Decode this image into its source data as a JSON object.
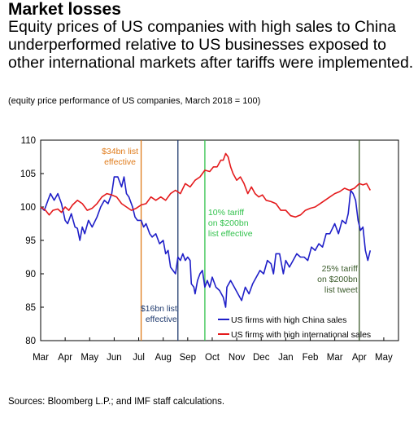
{
  "header": {
    "title": "Market losses",
    "subtitle": "Equity prices of US companies with high sales to China underperformed relative to US businesses exposed to other international markets after tariffs were implemented.",
    "note": "(equity price performance of US companies, March 2018 = 100)"
  },
  "footer": {
    "source": "Sources: Bloomberg L.P.; and IMF staff calculations."
  },
  "colors": {
    "china": "#1f1fc8",
    "international": "#e41a1c",
    "orange": "#e07b1a",
    "navy": "#1f3a6e",
    "green": "#33c24d",
    "darkgreen": "#3a5a2a"
  },
  "chart_data": {
    "type": "line",
    "title": "",
    "xlabel": "",
    "ylabel": "",
    "x_tick_labels": [
      "Mar",
      "Apr",
      "May",
      "Jun",
      "Jul",
      "Aug",
      "Sep",
      "Oct",
      "Nov",
      "Dec",
      "Jan",
      "Feb",
      "Mar",
      "Apr",
      "May"
    ],
    "x_range_months": [
      0,
      14.6
    ],
    "ylim": [
      80,
      110
    ],
    "y_ticks": [
      80,
      85,
      90,
      95,
      100,
      105,
      110
    ],
    "y_tick_labels": [
      "80",
      "85",
      "90",
      "95",
      "100",
      "105",
      "110"
    ],
    "grid": false,
    "legend_position": "bottom-right",
    "series": [
      {
        "name": "US firms with high China sales",
        "color": "#1f1fc8",
        "points": [
          [
            0,
            100
          ],
          [
            0.15,
            99.5
          ],
          [
            0.3,
            101
          ],
          [
            0.4,
            102
          ],
          [
            0.55,
            101
          ],
          [
            0.7,
            102
          ],
          [
            0.85,
            100.5
          ],
          [
            1.0,
            98
          ],
          [
            1.1,
            97.5
          ],
          [
            1.25,
            99
          ],
          [
            1.4,
            97
          ],
          [
            1.5,
            96.8
          ],
          [
            1.6,
            95
          ],
          [
            1.7,
            97
          ],
          [
            1.8,
            96
          ],
          [
            1.95,
            98
          ],
          [
            2.1,
            97
          ],
          [
            2.3,
            98.5
          ],
          [
            2.45,
            100
          ],
          [
            2.6,
            101
          ],
          [
            2.75,
            100.5
          ],
          [
            2.9,
            102
          ],
          [
            3.0,
            104.5
          ],
          [
            3.15,
            104.5
          ],
          [
            3.3,
            103
          ],
          [
            3.4,
            104.5
          ],
          [
            3.5,
            102
          ],
          [
            3.6,
            101.5
          ],
          [
            3.75,
            100
          ],
          [
            3.85,
            98.5
          ],
          [
            3.95,
            98
          ],
          [
            4.1,
            98
          ],
          [
            4.2,
            97
          ],
          [
            4.3,
            97.5
          ],
          [
            4.45,
            96
          ],
          [
            4.55,
            95.5
          ],
          [
            4.7,
            96
          ],
          [
            4.85,
            94.5
          ],
          [
            5.0,
            95
          ],
          [
            5.1,
            93
          ],
          [
            5.2,
            93.5
          ],
          [
            5.3,
            91
          ],
          [
            5.4,
            90.5
          ],
          [
            5.5,
            90
          ],
          [
            5.6,
            92.5
          ],
          [
            5.7,
            92
          ],
          [
            5.8,
            93
          ],
          [
            5.9,
            92
          ],
          [
            6.0,
            92.5
          ],
          [
            6.1,
            92
          ],
          [
            6.15,
            88.5
          ],
          [
            6.25,
            88
          ],
          [
            6.3,
            87
          ],
          [
            6.4,
            89
          ],
          [
            6.5,
            90
          ],
          [
            6.6,
            90.5
          ],
          [
            6.7,
            88
          ],
          [
            6.8,
            89
          ],
          [
            6.9,
            88
          ],
          [
            7.0,
            89.5
          ],
          [
            7.15,
            88
          ],
          [
            7.3,
            87.5
          ],
          [
            7.45,
            86.5
          ],
          [
            7.55,
            85
          ],
          [
            7.6,
            88
          ],
          [
            7.75,
            89
          ],
          [
            7.9,
            88
          ],
          [
            8.05,
            87
          ],
          [
            8.2,
            86
          ],
          [
            8.35,
            88
          ],
          [
            8.5,
            87
          ],
          [
            8.65,
            88.5
          ],
          [
            8.8,
            89.5
          ],
          [
            8.95,
            90.5
          ],
          [
            9.1,
            90
          ],
          [
            9.25,
            92
          ],
          [
            9.4,
            91.5
          ],
          [
            9.5,
            90
          ],
          [
            9.6,
            93
          ],
          [
            9.75,
            93
          ],
          [
            9.9,
            90
          ],
          [
            10.0,
            92
          ],
          [
            10.15,
            91
          ],
          [
            10.3,
            92
          ],
          [
            10.45,
            93
          ],
          [
            10.6,
            92.5
          ],
          [
            10.75,
            92.5
          ],
          [
            10.9,
            92
          ],
          [
            11.05,
            94
          ],
          [
            11.2,
            93.5
          ],
          [
            11.35,
            94.5
          ],
          [
            11.5,
            94
          ],
          [
            11.65,
            96
          ],
          [
            11.8,
            96
          ],
          [
            12.0,
            97.5
          ],
          [
            12.15,
            96
          ],
          [
            12.3,
            98
          ],
          [
            12.45,
            97.5
          ],
          [
            12.55,
            99
          ],
          [
            12.65,
            102.5
          ],
          [
            12.75,
            102
          ],
          [
            12.85,
            101
          ],
          [
            12.95,
            98
          ],
          [
            13.05,
            96.5
          ],
          [
            13.15,
            97
          ],
          [
            13.25,
            93.5
          ],
          [
            13.35,
            92
          ],
          [
            13.45,
            93.5
          ]
        ]
      },
      {
        "name": "US firms with high international sales",
        "color": "#e41a1c",
        "points": [
          [
            0,
            100
          ],
          [
            0.2,
            99.5
          ],
          [
            0.35,
            98.8
          ],
          [
            0.5,
            99.5
          ],
          [
            0.7,
            99.7
          ],
          [
            0.85,
            99.2
          ],
          [
            1.0,
            100
          ],
          [
            1.15,
            99.5
          ],
          [
            1.3,
            100.3
          ],
          [
            1.5,
            101
          ],
          [
            1.7,
            100.5
          ],
          [
            1.9,
            99.5
          ],
          [
            2.1,
            99.8
          ],
          [
            2.3,
            100.5
          ],
          [
            2.5,
            101.5
          ],
          [
            2.7,
            102
          ],
          [
            2.9,
            101.8
          ],
          [
            3.1,
            101.5
          ],
          [
            3.3,
            100.5
          ],
          [
            3.5,
            100
          ],
          [
            3.7,
            99.5
          ],
          [
            3.9,
            99.8
          ],
          [
            4.1,
            100.3
          ],
          [
            4.3,
            100.5
          ],
          [
            4.5,
            101.5
          ],
          [
            4.7,
            101
          ],
          [
            4.9,
            101.5
          ],
          [
            5.1,
            101
          ],
          [
            5.3,
            102
          ],
          [
            5.5,
            102.5
          ],
          [
            5.7,
            102
          ],
          [
            5.9,
            103.5
          ],
          [
            6.1,
            103
          ],
          [
            6.3,
            104
          ],
          [
            6.5,
            104.5
          ],
          [
            6.7,
            105.5
          ],
          [
            6.9,
            105.3
          ],
          [
            7.05,
            106
          ],
          [
            7.2,
            106
          ],
          [
            7.35,
            107
          ],
          [
            7.45,
            107
          ],
          [
            7.55,
            108
          ],
          [
            7.65,
            107.5
          ],
          [
            7.75,
            106
          ],
          [
            7.85,
            105
          ],
          [
            8.0,
            104
          ],
          [
            8.15,
            104.5
          ],
          [
            8.3,
            103.5
          ],
          [
            8.45,
            102
          ],
          [
            8.6,
            103
          ],
          [
            8.75,
            102
          ],
          [
            8.9,
            101.5
          ],
          [
            9.05,
            101.8
          ],
          [
            9.2,
            101
          ],
          [
            9.4,
            100.8
          ],
          [
            9.6,
            100.5
          ],
          [
            9.8,
            99.5
          ],
          [
            10.0,
            99.5
          ],
          [
            10.2,
            98.7
          ],
          [
            10.4,
            98.5
          ],
          [
            10.6,
            98.8
          ],
          [
            10.8,
            99.5
          ],
          [
            11.0,
            99.8
          ],
          [
            11.2,
            100
          ],
          [
            11.4,
            100.5
          ],
          [
            11.6,
            101
          ],
          [
            11.8,
            101.5
          ],
          [
            12.0,
            102
          ],
          [
            12.2,
            102.3
          ],
          [
            12.4,
            102.8
          ],
          [
            12.6,
            102.5
          ],
          [
            12.8,
            102.8
          ],
          [
            13.0,
            103.5
          ],
          [
            13.15,
            103.3
          ],
          [
            13.3,
            103.5
          ],
          [
            13.45,
            102.5
          ]
        ]
      }
    ],
    "event_lines": [
      {
        "x": 4.1,
        "color": "#e07b1a",
        "label_lines": [
          "$34bn list",
          "effective"
        ]
      },
      {
        "x": 5.6,
        "color": "#1f3a6e",
        "label_lines": [
          "$16bn list",
          "effective"
        ]
      },
      {
        "x": 6.7,
        "color": "#33c24d",
        "label_lines": [
          "10% tariff",
          "on $200bn",
          "list effective"
        ]
      },
      {
        "x": 13.0,
        "color": "#3a5a2a",
        "label_lines": [
          "25% tariff",
          "on $200bn",
          "list tweet"
        ]
      }
    ]
  }
}
